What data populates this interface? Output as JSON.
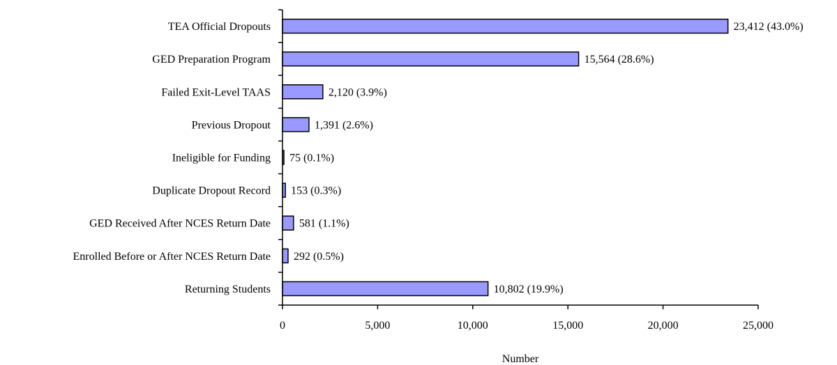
{
  "colors": {
    "bar_fill": "#9999FF",
    "bar_stroke": "#000000",
    "axis": "#000000"
  },
  "chart_data": {
    "type": "bar",
    "orientation": "horizontal",
    "title": "",
    "xlabel": "Number",
    "ylabel": "",
    "xlim": [
      0,
      25000
    ],
    "x_ticks": [
      0,
      5000,
      10000,
      15000,
      20000,
      25000
    ],
    "x_tick_labels": [
      "0",
      "5,000",
      "10,000",
      "15,000",
      "20,000",
      "25,000"
    ],
    "grid": false,
    "legend": "none",
    "categories": [
      "TEA Official Dropouts",
      "GED Preparation Program",
      "Failed Exit-Level TAAS",
      "Previous Dropout",
      "Ineligible for Funding",
      "Duplicate Dropout Record",
      "GED Received After NCES Return Date",
      "Enrolled Before or After NCES Return Date",
      "Returning Students"
    ],
    "values": [
      23412,
      15564,
      2120,
      1391,
      75,
      153,
      581,
      292,
      10802
    ],
    "data_labels": [
      "23,412 (43.0%)",
      "15,564 (28.6%)",
      "2,120 (3.9%)",
      "1,391 (2.6%)",
      "75 (0.1%)",
      "153 (0.3%)",
      "581 (1.1%)",
      "292 (0.5%)",
      "10,802 (19.9%)"
    ]
  }
}
